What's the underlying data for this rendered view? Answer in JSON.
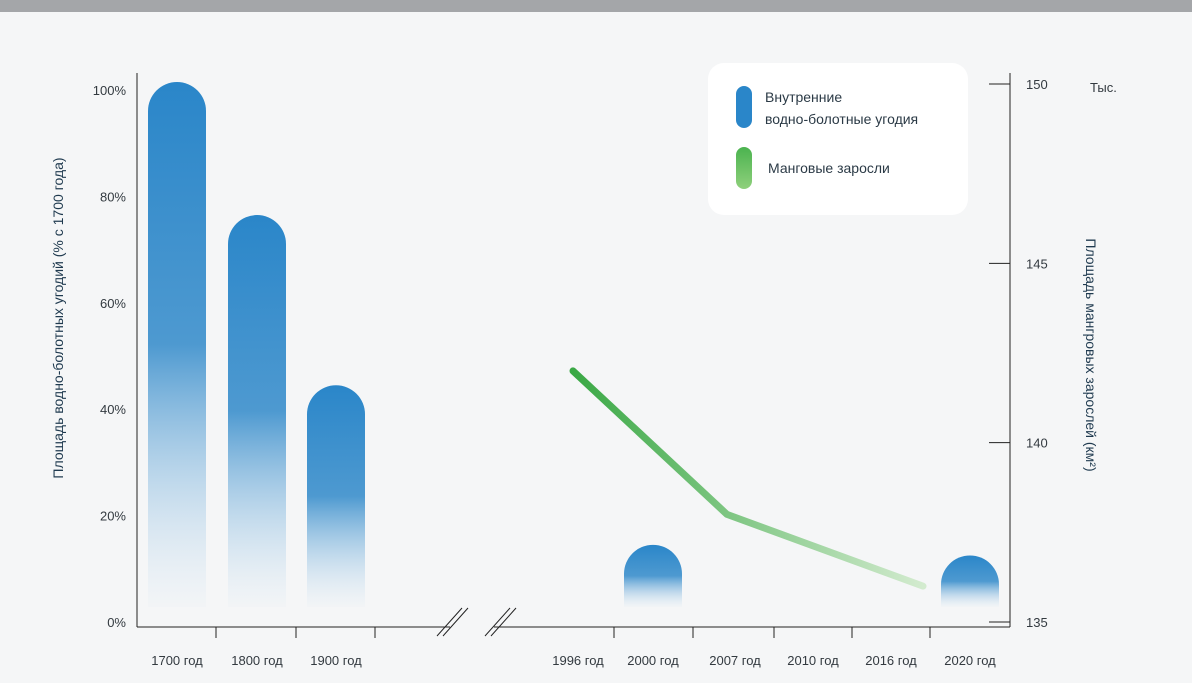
{
  "chart_data": {
    "type": "bar",
    "title": "",
    "left_axis": {
      "label": "Площадь водно-болотных угодий (% с 1700 года)",
      "range": [
        0,
        100
      ],
      "ticks": [
        "0%",
        "20%",
        "40%",
        "60%",
        "80%",
        "100%"
      ]
    },
    "right_axis": {
      "label": "Площадь мангровых зарослей (км²)",
      "unit_label": "Тыс.",
      "range": [
        135,
        150
      ],
      "ticks": [
        "135",
        "140",
        "145",
        "150"
      ]
    },
    "categories_left": [
      "1700 год",
      "1800 год",
      "1900 год"
    ],
    "categories_right": [
      "1996 год",
      "2000 год",
      "2007 год",
      "2010 год",
      "2016 год",
      "2020 год"
    ],
    "series": [
      {
        "name": "Внутренние водно-болотные угодия",
        "type": "bar",
        "axis": "left",
        "color": "#2a86c9",
        "points": [
          {
            "x": "1700 год",
            "y": 100
          },
          {
            "x": "1800 год",
            "y": 75
          },
          {
            "x": "1900 год",
            "y": 43
          },
          {
            "x": "2000 год",
            "y": 13
          },
          {
            "x": "2020 год",
            "y": 11
          }
        ]
      },
      {
        "name": "Манговые заросли",
        "type": "line",
        "axis": "right",
        "color": "#4bb34f",
        "points": [
          {
            "x": "1996 год",
            "y": 142
          },
          {
            "x": "2007 год",
            "y": 138
          },
          {
            "x": "2016 год",
            "y": 136
          }
        ]
      }
    ],
    "legend": {
      "position": "top-right",
      "items": [
        "Внутренние водно-болотные угодия",
        "Манговые заросли"
      ],
      "item1_lines": [
        "Внутренние",
        "водно-болотные угодия"
      ],
      "item2": "Манговые заросли"
    },
    "grid": false,
    "axis_break": true
  }
}
